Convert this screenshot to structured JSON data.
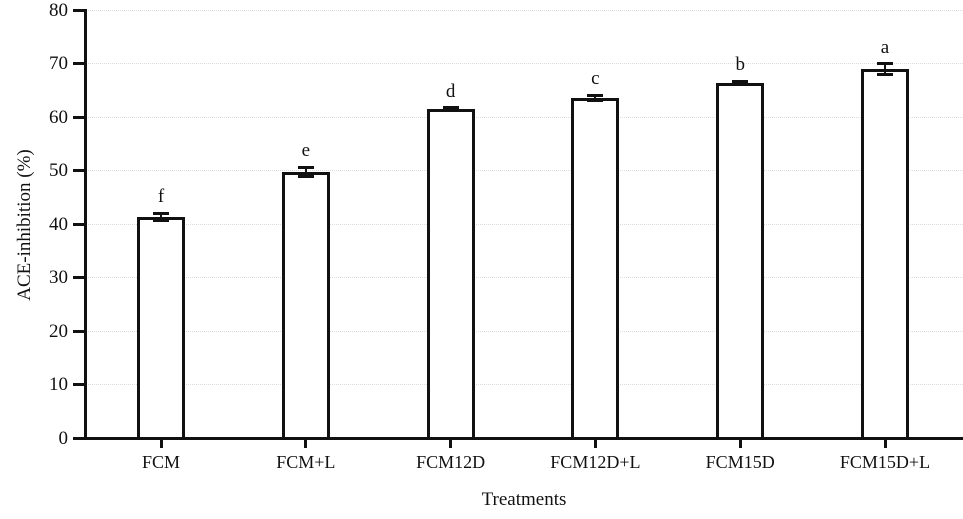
{
  "chart_data": {
    "type": "bar",
    "title": "",
    "xlabel": "Treatments",
    "ylabel": "ACE-inhibition (%)",
    "categories": [
      "FCM",
      "FCM+L",
      "FCM12D",
      "FCM12D+L",
      "FCM15D",
      "FCM15D+L"
    ],
    "values": [
      41.3,
      49.7,
      61.5,
      63.6,
      66.4,
      69.0
    ],
    "errors": [
      0.7,
      0.9,
      0.25,
      0.45,
      0.25,
      1.0
    ],
    "significance_letters": [
      "f",
      "e",
      "d",
      "c",
      "b",
      "a"
    ],
    "ylim": [
      0,
      80
    ],
    "ytick_step": 10,
    "yticks": [
      0,
      10,
      20,
      30,
      40,
      50,
      60,
      70,
      80
    ],
    "grid": "dotted horizontal",
    "bar_fill": "#ffffff",
    "bar_border": "#111111",
    "gridline_color": "#dcdcdc",
    "legend": null
  }
}
